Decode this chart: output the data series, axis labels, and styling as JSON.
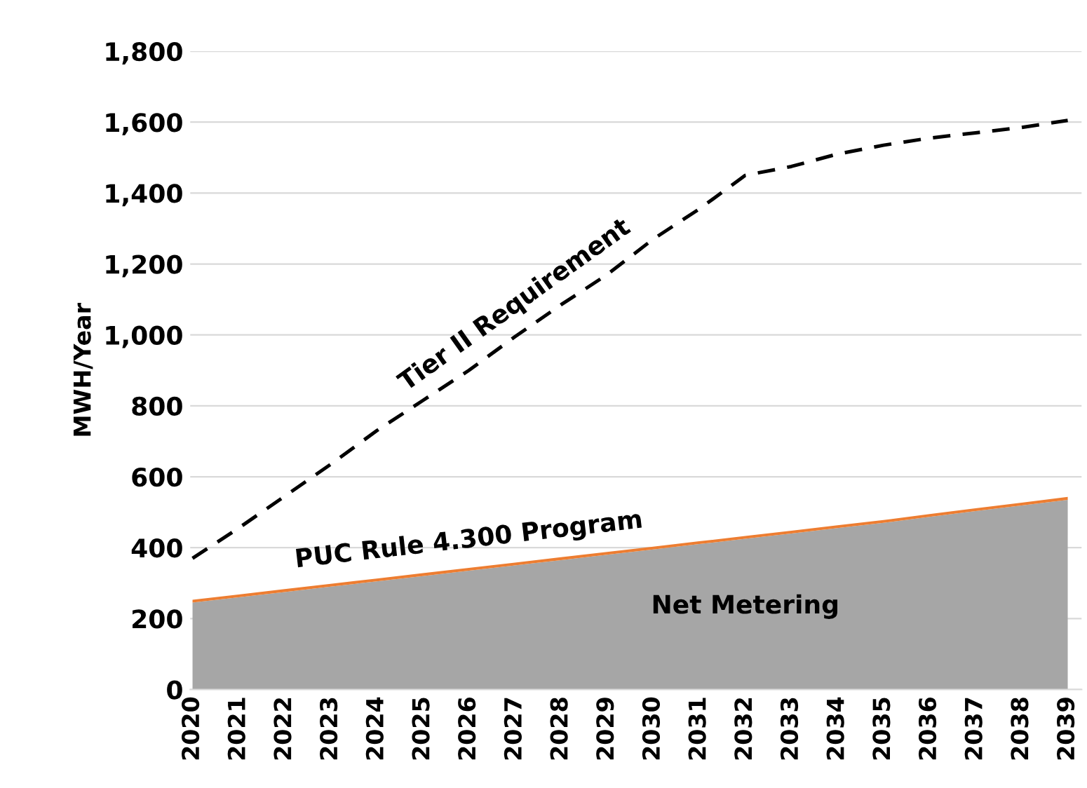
{
  "chart_data": {
    "type": "area",
    "stacked": true,
    "ylabel": "MWH/Year",
    "categories": [
      "2020",
      "2021",
      "2022",
      "2023",
      "2024",
      "2025",
      "2026",
      "2027",
      "2028",
      "2029",
      "2030",
      "2031",
      "2032",
      "2033",
      "2034",
      "2035",
      "2036",
      "2037",
      "2038",
      "2039"
    ],
    "series": [
      {
        "name": "Net Metering",
        "color": "#a6a6a6",
        "values": [
          245,
          260,
          275,
          290,
          305,
          320,
          335,
          350,
          365,
          380,
          395,
          410,
          425,
          440,
          455,
          470,
          487,
          503,
          519,
          535
        ]
      },
      {
        "name": "PUC Rule 4.300 Program",
        "color": "#ed7d31",
        "values": [
          8,
          8,
          8,
          8,
          8,
          8,
          8,
          8,
          8,
          8,
          8,
          8,
          8,
          8,
          8,
          8,
          8,
          8,
          8,
          8
        ]
      },
      {
        "name": "Tier II Requirement",
        "type": "line",
        "line_style": "dashed",
        "color": "#000000",
        "values": [
          370,
          455,
          545,
          635,
          730,
          815,
          900,
          995,
          1085,
          1170,
          1270,
          1355,
          1450,
          1475,
          1510,
          1535,
          1555,
          1570,
          1585,
          1605
        ]
      }
    ],
    "ylim": [
      0,
      1800
    ],
    "yticks": [
      0,
      {
        "value": 200,
        "label": "200"
      },
      {
        "value": 400,
        "label": "400"
      },
      {
        "value": 600,
        "label": "600"
      },
      {
        "value": 800,
        "label": "800"
      },
      {
        "value": 1000,
        "label": "1,000"
      },
      {
        "value": 1200,
        "label": "1,200"
      },
      {
        "value": 1400,
        "label": "1,400"
      },
      {
        "value": 1600,
        "label": "1,600"
      },
      {
        "value": 1800,
        "label": "1,800"
      }
    ],
    "grid": "y",
    "legend": false
  }
}
